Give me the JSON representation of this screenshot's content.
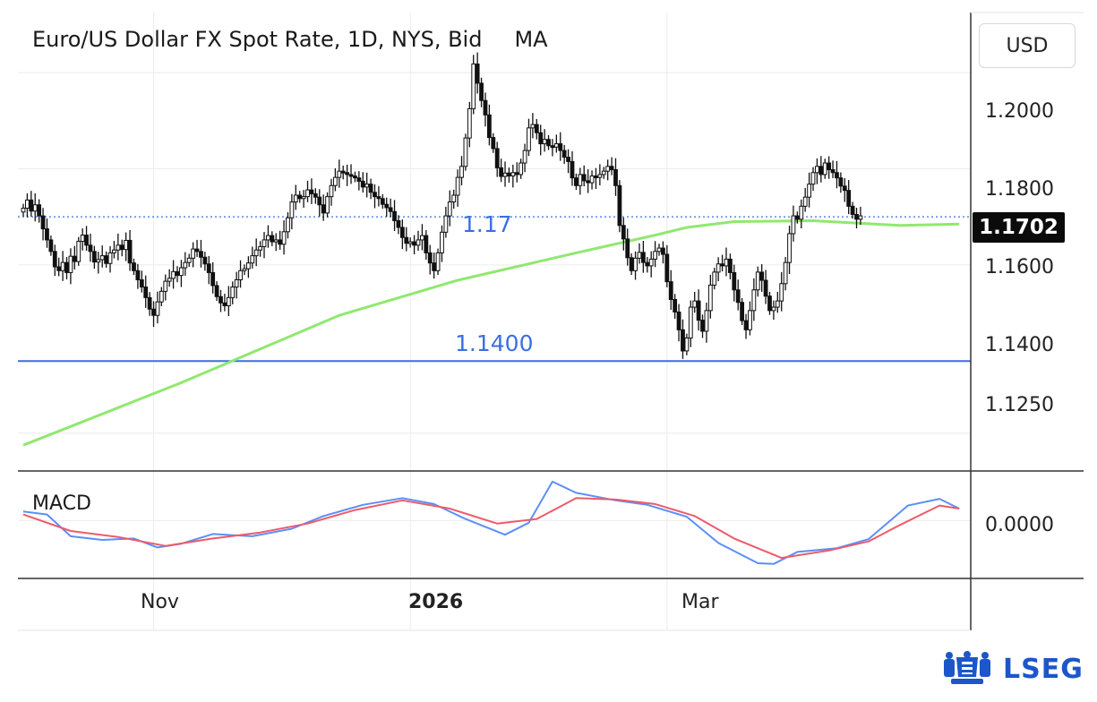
{
  "header": {
    "title": "Euro/US Dollar FX Spot Rate, 1D, NYS, Bid",
    "indicator": "MA",
    "currency_button": "USD"
  },
  "price_axis": {
    "ticks": [
      {
        "label": "1.2000",
        "value": 1.2
      },
      {
        "label": "1.1800",
        "value": 1.18
      },
      {
        "label": "1.1600",
        "value": 1.16
      },
      {
        "label": "1.1400",
        "value": 1.14
      },
      {
        "label": "1.1250",
        "value": 1.125
      }
    ],
    "last_price_label": "1.1702",
    "last_price": 1.1702
  },
  "macd_axis": {
    "label": "MACD",
    "tick": "0.0000"
  },
  "x_axis": {
    "labels": [
      {
        "label": "Nov",
        "index": 33
      },
      {
        "label": "2026",
        "index": 98
      },
      {
        "label": "Mar",
        "index": 163
      }
    ]
  },
  "horizontal_lines": [
    {
      "value": 1.14,
      "label": "1.1400",
      "color": "#3b6fe0"
    },
    {
      "value": 1.17,
      "label": "1.17",
      "color": "#3b6fe0"
    }
  ],
  "branding": {
    "logo_text": "LSEG"
  },
  "colors": {
    "candle": "#111111",
    "ma_line": "#90e870",
    "macd_line": "#5b8ff9",
    "signal_line": "#ee5a6a",
    "level_line": "#3b6fe0",
    "grid": "#ececec"
  },
  "chart_data": {
    "type": "candlestick",
    "title": "Euro/US Dollar FX Spot Rate, 1D, NYS, Bid",
    "unit": "USD",
    "ylim": [
      1.1175,
      1.2125
    ],
    "grid": true,
    "series": [
      {
        "name": "EUR/USD",
        "kind": "ohlc_close",
        "values": [
          1.1718,
          1.1735,
          1.1712,
          1.1725,
          1.1702,
          1.1675,
          1.1652,
          1.1628,
          1.1596,
          1.1588,
          1.1605,
          1.1584,
          1.1618,
          1.1607,
          1.1649,
          1.1662,
          1.1641,
          1.1628,
          1.1606,
          1.1611,
          1.1619,
          1.1603,
          1.1625,
          1.1631,
          1.1641,
          1.1632,
          1.1651,
          1.1604,
          1.1588,
          1.1569,
          1.1554,
          1.1532,
          1.1508,
          1.1495,
          1.1523,
          1.1545,
          1.1566,
          1.1572,
          1.1586,
          1.1578,
          1.1594,
          1.1605,
          1.1614,
          1.1633,
          1.1628,
          1.1616,
          1.1602,
          1.1584,
          1.1557,
          1.1534,
          1.1521,
          1.1515,
          1.1532,
          1.1554,
          1.1569,
          1.1588,
          1.1592,
          1.1604,
          1.1619,
          1.1631,
          1.1638,
          1.1652,
          1.1661,
          1.1648,
          1.1652,
          1.1643,
          1.1669,
          1.1698,
          1.1731,
          1.1745,
          1.1738,
          1.1742,
          1.1756,
          1.1748,
          1.1741,
          1.1725,
          1.1708,
          1.1742,
          1.1765,
          1.1782,
          1.1795,
          1.1792,
          1.1788,
          1.1785,
          1.1781,
          1.1774,
          1.1762,
          1.1768,
          1.1751,
          1.1742,
          1.1738,
          1.1726,
          1.1719,
          1.1711,
          1.1692,
          1.1678,
          1.1657,
          1.1645,
          1.1648,
          1.1641,
          1.1652,
          1.1661,
          1.1625,
          1.1604,
          1.1588,
          1.1625,
          1.1668,
          1.1702,
          1.1731,
          1.1745,
          1.1782,
          1.1805,
          1.1864,
          1.1925,
          1.2018,
          1.1978,
          1.1942,
          1.1912,
          1.1865,
          1.1842,
          1.1802,
          1.1784,
          1.1791,
          1.1785,
          1.1792,
          1.1788,
          1.1812,
          1.1838,
          1.1885,
          1.1892,
          1.1875,
          1.1852,
          1.1861,
          1.1848,
          1.1845,
          1.1852,
          1.1838,
          1.1824,
          1.1815,
          1.1781,
          1.1765,
          1.1788,
          1.1775,
          1.1771,
          1.1785,
          1.1782,
          1.1788,
          1.1795,
          1.1805,
          1.1798,
          1.1765,
          1.1682,
          1.1654,
          1.1615,
          1.1588,
          1.1614,
          1.1626,
          1.1605,
          1.1598,
          1.1612,
          1.1628,
          1.1635,
          1.1622,
          1.1565,
          1.1528,
          1.1502,
          1.1465,
          1.1421,
          1.1448,
          1.1512,
          1.1525,
          1.1485,
          1.1462,
          1.1505,
          1.1558,
          1.1585,
          1.1602,
          1.1598,
          1.1612,
          1.1584,
          1.1548,
          1.1522,
          1.1484,
          1.1465,
          1.1505,
          1.1548,
          1.1585,
          1.1568,
          1.1535,
          1.1505,
          1.1512,
          1.1525,
          1.1561,
          1.1605,
          1.1665,
          1.1702,
          1.1695,
          1.1722,
          1.1741,
          1.1768,
          1.1792,
          1.1805,
          1.1788,
          1.1812,
          1.1798,
          1.1792,
          1.1781,
          1.1764,
          1.1755,
          1.1722,
          1.1705,
          1.1695,
          1.1702
        ]
      },
      {
        "name": "MA",
        "kind": "line",
        "points": [
          [
            0,
            1.1225
          ],
          [
            40,
            1.1355
          ],
          [
            80,
            1.1495
          ],
          [
            110,
            1.1568
          ],
          [
            140,
            1.1625
          ],
          [
            160,
            1.1662
          ],
          [
            168,
            1.1678
          ],
          [
            180,
            1.169
          ],
          [
            200,
            1.1692
          ],
          [
            222,
            1.1682
          ],
          [
            237,
            1.1685
          ]
        ]
      },
      {
        "name": "MACD",
        "kind": "line",
        "points": [
          [
            0,
            0.0012
          ],
          [
            6,
            0.0008
          ],
          [
            12,
            -0.0021
          ],
          [
            20,
            -0.0026
          ],
          [
            28,
            -0.0024
          ],
          [
            34,
            -0.0036
          ],
          [
            40,
            -0.0031
          ],
          [
            48,
            -0.0018
          ],
          [
            58,
            -0.0021
          ],
          [
            68,
            -0.0011
          ],
          [
            76,
            0.0006
          ],
          [
            86,
            0.0021
          ],
          [
            96,
            0.003
          ],
          [
            104,
            0.0022
          ],
          [
            112,
            0.0002
          ],
          [
            122,
            -0.0019
          ],
          [
            128,
            -0.0003
          ],
          [
            134,
            0.0052
          ],
          [
            140,
            0.0037
          ],
          [
            150,
            0.0027
          ],
          [
            158,
            0.0021
          ],
          [
            168,
            0.0005
          ],
          [
            176,
            -0.003
          ],
          [
            186,
            -0.0057
          ],
          [
            190,
            -0.0058
          ],
          [
            196,
            -0.0042
          ],
          [
            206,
            -0.0037
          ],
          [
            214,
            -0.0025
          ],
          [
            224,
            0.002
          ],
          [
            232,
            0.0029
          ],
          [
            237,
            0.0016
          ]
        ]
      },
      {
        "name": "Signal",
        "kind": "line",
        "points": [
          [
            0,
            0.0008
          ],
          [
            12,
            -0.0014
          ],
          [
            24,
            -0.0022
          ],
          [
            36,
            -0.0034
          ],
          [
            48,
            -0.0024
          ],
          [
            60,
            -0.0016
          ],
          [
            72,
            -0.0004
          ],
          [
            84,
            0.0014
          ],
          [
            96,
            0.0027
          ],
          [
            108,
            0.0016
          ],
          [
            120,
            -0.0004
          ],
          [
            130,
            0.0002
          ],
          [
            140,
            0.003
          ],
          [
            150,
            0.0028
          ],
          [
            160,
            0.0022
          ],
          [
            170,
            0.0006
          ],
          [
            180,
            -0.0024
          ],
          [
            192,
            -0.005
          ],
          [
            204,
            -0.004
          ],
          [
            214,
            -0.0028
          ],
          [
            222,
            -0.0006
          ],
          [
            232,
            0.002
          ],
          [
            237,
            0.0016
          ]
        ]
      }
    ],
    "macd_ylim": [
      -0.0075,
      0.0065
    ]
  }
}
